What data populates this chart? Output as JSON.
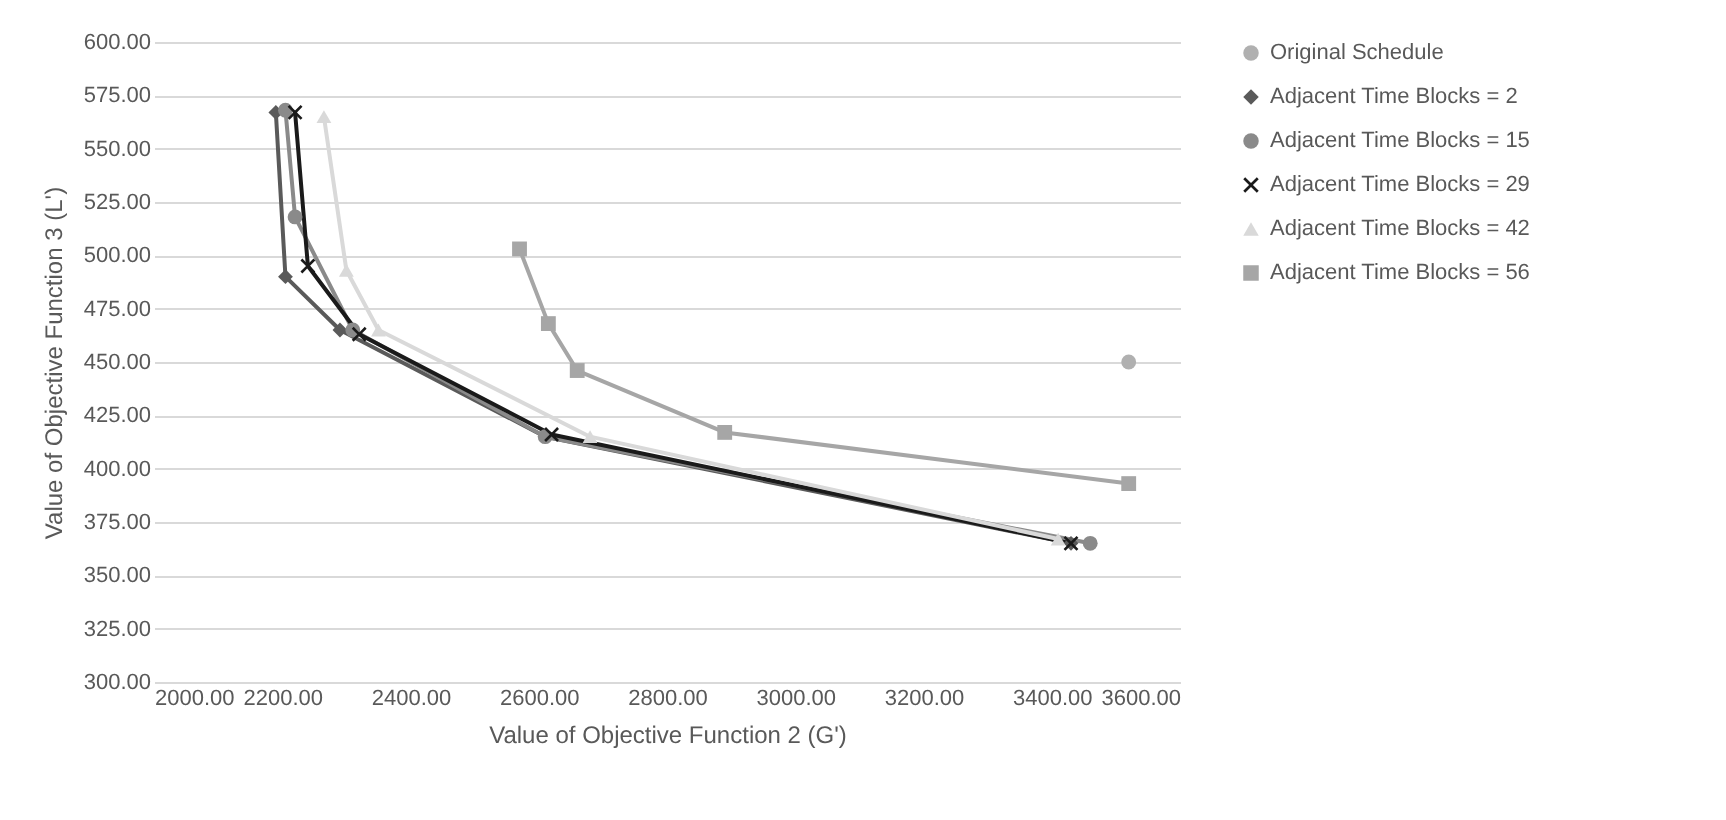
{
  "chart_data": {
    "type": "line",
    "xlabel": "Value of Objective Function 2 (G')",
    "ylabel": "Value of Objective Function 3 (L')",
    "xlim": [
      2000,
      3600
    ],
    "ylim": [
      300,
      600
    ],
    "xticks": [
      {
        "value": 2000,
        "label": "2000.00"
      },
      {
        "value": 2200,
        "label": "2200.00"
      },
      {
        "value": 2400,
        "label": "2400.00"
      },
      {
        "value": 2600,
        "label": "2600.00"
      },
      {
        "value": 2800,
        "label": "2800.00"
      },
      {
        "value": 3000,
        "label": "3000.00"
      },
      {
        "value": 3200,
        "label": "3200.00"
      },
      {
        "value": 3400,
        "label": "3400.00"
      },
      {
        "value": 3600,
        "label": "3600.00"
      }
    ],
    "yticks": [
      {
        "value": 300,
        "label": "300.00"
      },
      {
        "value": 325,
        "label": "325.00"
      },
      {
        "value": 350,
        "label": "350.00"
      },
      {
        "value": 375,
        "label": "375.00"
      },
      {
        "value": 400,
        "label": "400.00"
      },
      {
        "value": 425,
        "label": "425.00"
      },
      {
        "value": 450,
        "label": "450.00"
      },
      {
        "value": 475,
        "label": "475.00"
      },
      {
        "value": 500,
        "label": "500.00"
      },
      {
        "value": 525,
        "label": "525.00"
      },
      {
        "value": 550,
        "label": "550.00"
      },
      {
        "value": 575,
        "label": "575.00"
      },
      {
        "value": 600,
        "label": "600.00"
      }
    ],
    "grid": "y",
    "legend": "right",
    "series": [
      {
        "name": "Original Schedule",
        "type": "scatter",
        "marker": "circle",
        "color": "#b0b0b0",
        "x": [
          3520
        ],
        "values": [
          450
        ]
      },
      {
        "name": "Adjacent Time Blocks = 2",
        "type": "line",
        "marker": "diamond",
        "color": "#5a5a5a",
        "x": [
          2190,
          2205,
          2290,
          2610,
          3430
        ],
        "values": [
          567,
          490,
          465,
          415,
          365
        ]
      },
      {
        "name": "Adjacent Time Blocks = 15",
        "type": "line",
        "marker": "circle",
        "color": "#8a8a8a",
        "x": [
          2205,
          2220,
          2310,
          2610,
          3460
        ],
        "values": [
          568,
          518,
          465,
          415,
          365
        ]
      },
      {
        "name": "Adjacent Time Blocks = 29",
        "type": "line",
        "marker": "cross",
        "color": "#1a1a1a",
        "x": [
          2220,
          2240,
          2320,
          2620,
          3430
        ],
        "values": [
          567,
          495,
          463,
          416,
          365
        ]
      },
      {
        "name": "Adjacent Time Blocks = 42",
        "type": "line",
        "marker": "triangle",
        "color": "#d9d9d9",
        "x": [
          2265,
          2300,
          2350,
          2680,
          3410
        ],
        "values": [
          565,
          493,
          465,
          415,
          367
        ]
      },
      {
        "name": "Adjacent Time Blocks = 56",
        "type": "line",
        "marker": "square",
        "color": "#a6a6a6",
        "x": [
          2570,
          2615,
          2660,
          2890,
          3520
        ],
        "values": [
          503,
          468,
          446,
          417,
          393
        ]
      }
    ]
  }
}
